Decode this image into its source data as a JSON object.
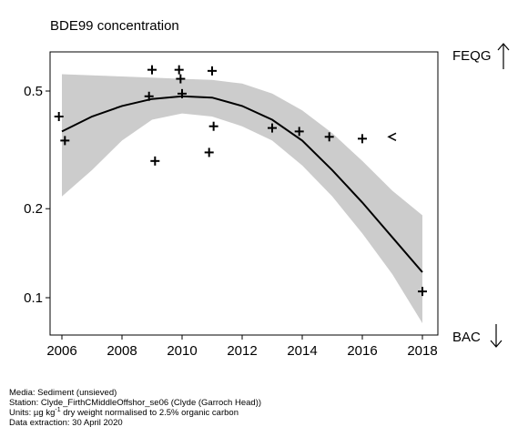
{
  "chart_data": {
    "type": "scatter",
    "title": "BDE99 concentration",
    "xlabel": "",
    "ylabel": "",
    "y_scale": "log",
    "xlim": [
      2005.5,
      2018.5
    ],
    "ylim": [
      0.083,
      0.65
    ],
    "x_ticks": [
      "2006",
      "2008",
      "2010",
      "2012",
      "2014",
      "2016",
      "2018"
    ],
    "y_ticks": [
      "0.1",
      "0.2",
      "0.5"
    ],
    "points": [
      {
        "x": 2005.9,
        "y": 0.41,
        "marker": "+"
      },
      {
        "x": 2006.1,
        "y": 0.34,
        "marker": "+"
      },
      {
        "x": 2008.9,
        "y": 0.48,
        "marker": "+"
      },
      {
        "x": 2009.0,
        "y": 0.59,
        "marker": "+"
      },
      {
        "x": 2009.1,
        "y": 0.29,
        "marker": "+"
      },
      {
        "x": 2009.9,
        "y": 0.59,
        "marker": "+"
      },
      {
        "x": 2009.95,
        "y": 0.55,
        "marker": "+"
      },
      {
        "x": 2010.0,
        "y": 0.49,
        "marker": "+"
      },
      {
        "x": 2010.9,
        "y": 0.31,
        "marker": "+"
      },
      {
        "x": 2011.0,
        "y": 0.585,
        "marker": "+"
      },
      {
        "x": 2011.05,
        "y": 0.38,
        "marker": "+"
      },
      {
        "x": 2013.0,
        "y": 0.375,
        "marker": "+"
      },
      {
        "x": 2013.9,
        "y": 0.365,
        "marker": "+"
      },
      {
        "x": 2014.9,
        "y": 0.35,
        "marker": "+"
      },
      {
        "x": 2016.0,
        "y": 0.345,
        "marker": "+"
      },
      {
        "x": 2017.0,
        "y": 0.35,
        "marker": "<"
      },
      {
        "x": 2018.0,
        "y": 0.105,
        "marker": "+"
      }
    ],
    "trend": {
      "x": [
        2006,
        2007,
        2008,
        2009,
        2010,
        2011,
        2012,
        2013,
        2014,
        2015,
        2016,
        2017,
        2018
      ],
      "fit": [
        0.365,
        0.41,
        0.445,
        0.47,
        0.48,
        0.475,
        0.445,
        0.4,
        0.34,
        0.27,
        0.21,
        0.16,
        0.122
      ],
      "upper": [
        0.57,
        0.565,
        0.56,
        0.555,
        0.55,
        0.545,
        0.53,
        0.49,
        0.43,
        0.36,
        0.29,
        0.23,
        0.19
      ],
      "lower": [
        0.22,
        0.27,
        0.34,
        0.4,
        0.42,
        0.41,
        0.38,
        0.34,
        0.28,
        0.22,
        0.165,
        0.12,
        0.082
      ]
    },
    "thresholds": {
      "upper_label": "FEQG",
      "lower_label": "BAC"
    },
    "colors": {
      "band": "#cccccc",
      "line": "#000000",
      "axis": "#000000"
    }
  },
  "footer": {
    "media": "Media: Sediment (unsieved)",
    "station": "Station: Clyde_FirthCMiddleOffshor_se06 (Clyde (Garroch Head))",
    "units_prefix": "Units:  µg kg",
    "units_sup": "-1",
    "units_suffix": " dry weight normalised to 2.5% organic carbon",
    "extraction": "Data extraction: 30 April 2020"
  }
}
